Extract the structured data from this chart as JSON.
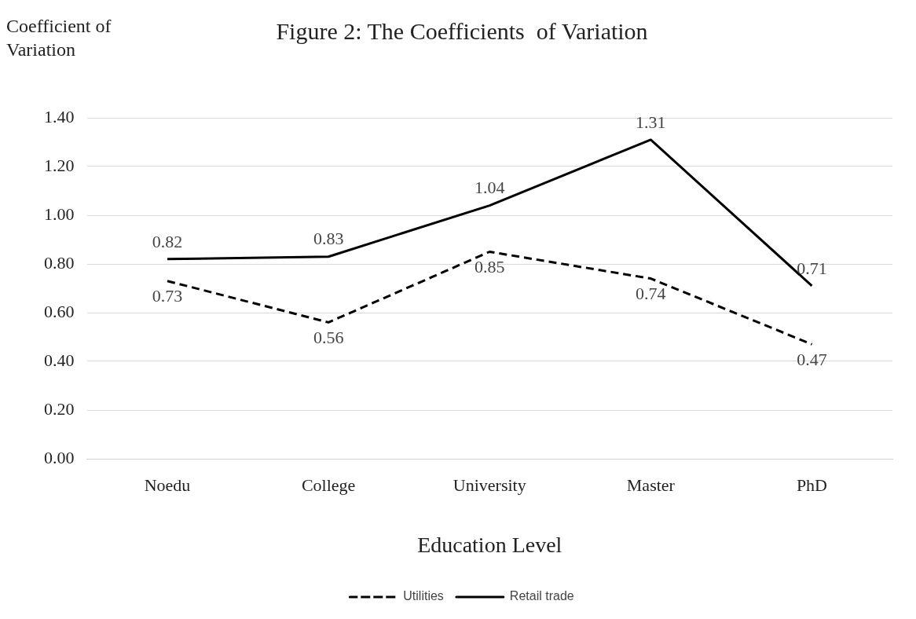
{
  "chart_data": {
    "type": "line",
    "title": "Figure 2: The Coefficients  of Variation",
    "xlabel": "Education Level",
    "ylabel": "Coefficient of Variation",
    "categories": [
      "Noedu",
      "College",
      "University",
      "Master",
      "PhD"
    ],
    "series": [
      {
        "name": "Utilities",
        "color": "#000000",
        "line_style": "dashed",
        "values": [
          0.73,
          0.56,
          0.85,
          0.74,
          0.47
        ]
      },
      {
        "name": "Retail trade",
        "color": "#000000",
        "line_style": "solid",
        "values": [
          0.82,
          0.83,
          1.04,
          1.31,
          0.71
        ]
      }
    ],
    "ylim": [
      0,
      1.4
    ],
    "yticks": [
      {
        "value": 0,
        "label": "0.00"
      },
      {
        "value": 0.2,
        "label": "0.20"
      },
      {
        "value": 0.4,
        "label": "0.40"
      },
      {
        "value": 0.6,
        "label": "0.60"
      },
      {
        "value": 0.8,
        "label": "0.80"
      },
      {
        "value": 1,
        "label": "1.00"
      },
      {
        "value": 1.2,
        "label": "1.20"
      },
      {
        "value": 1.4,
        "label": "1.40"
      }
    ],
    "grid": "y",
    "legend": "bottom",
    "marker": "none",
    "data_labels": true
  }
}
